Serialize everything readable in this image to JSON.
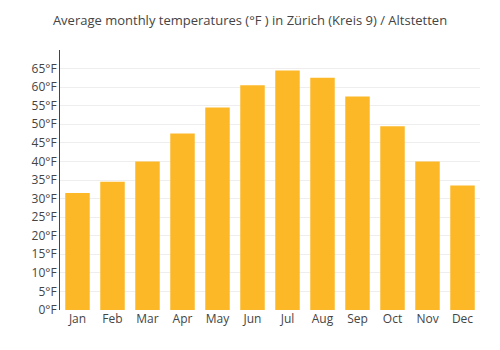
{
  "chart_data": {
    "type": "bar",
    "title": "Average monthly temperatures (°F ) in Zürich (Kreis 9) / Altstetten",
    "categories": [
      "Jan",
      "Feb",
      "Mar",
      "Apr",
      "May",
      "Jun",
      "Jul",
      "Aug",
      "Sep",
      "Oct",
      "Nov",
      "Dec"
    ],
    "values": [
      31.5,
      34.5,
      40.0,
      47.5,
      54.5,
      60.5,
      64.5,
      62.5,
      57.5,
      49.5,
      40.0,
      33.5
    ],
    "color": "#FDB827",
    "ylim": [
      0,
      70
    ],
    "yticks": [
      {
        "value": 0,
        "label": "0°F"
      },
      {
        "value": 5,
        "label": "5°F"
      },
      {
        "value": 10,
        "label": "10°F"
      },
      {
        "value": 15,
        "label": "15°F"
      },
      {
        "value": 20,
        "label": "20°F"
      },
      {
        "value": 25,
        "label": "25°F"
      },
      {
        "value": 30,
        "label": "30°F"
      },
      {
        "value": 35,
        "label": "35°F"
      },
      {
        "value": 40,
        "label": "40°F"
      },
      {
        "value": 45,
        "label": "45°F"
      },
      {
        "value": 50,
        "label": "50°F"
      },
      {
        "value": 55,
        "label": "55°F"
      },
      {
        "value": 60,
        "label": "60°F"
      },
      {
        "value": 65,
        "label": "65°F"
      }
    ],
    "grid": true
  }
}
